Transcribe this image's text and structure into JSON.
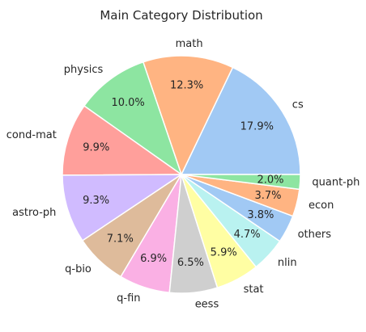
{
  "chart_data": {
    "type": "pie",
    "title": "Main Category Distribution",
    "categories": [
      "cs",
      "math",
      "physics",
      "cond-mat",
      "astro-ph",
      "q-bio",
      "q-fin",
      "eess",
      "stat",
      "nlin",
      "others",
      "econ",
      "quant-ph"
    ],
    "values": [
      17.9,
      12.3,
      10.0,
      9.9,
      9.3,
      7.1,
      6.9,
      6.5,
      5.9,
      4.7,
      3.8,
      3.7,
      2.0
    ],
    "value_labels": [
      "17.9%",
      "12.3%",
      "10.0%",
      "9.9%",
      "9.3%",
      "7.1%",
      "6.9%",
      "6.5%",
      "5.9%",
      "4.7%",
      "3.8%",
      "3.7%",
      "2.0%"
    ],
    "colors": [
      "#a1c9f4",
      "#ffb482",
      "#8de5a1",
      "#ff9f9b",
      "#d0bbff",
      "#debb9b",
      "#fab0e4",
      "#cfcfcf",
      "#fffea3",
      "#b9f2f0",
      "#a1c9f4",
      "#ffb482",
      "#8de5a1"
    ],
    "start_angle_deg": 0,
    "direction": "counterclockwise",
    "edge_color": "#ffffff"
  }
}
